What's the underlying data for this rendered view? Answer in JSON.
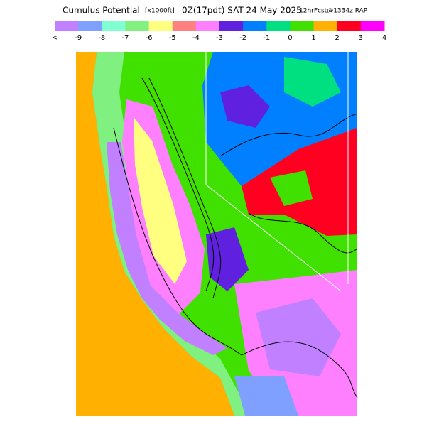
{
  "header": {
    "title": "Cumulus Potential",
    "units": "[x1000ft]",
    "valid": "0Z(17pdt) SAT 24 May 2025",
    "forecast": "12hrFcst@1334z RAP"
  },
  "legend": {
    "labels": [
      "<",
      "-9",
      "-8",
      "-7",
      "-6",
      "-5",
      "-4",
      "-3",
      "-2",
      "-1",
      "0",
      "1",
      "2",
      "3",
      "4"
    ],
    "colors": [
      "#c080ff",
      "#80a0ff",
      "#80ffd0",
      "#80f080",
      "#ffff80",
      "#ff8080",
      "#ff80ff",
      "#6020e0",
      "#0080ff",
      "#00e080",
      "#40e000",
      "#ffb000",
      "#ff0020",
      "#ff00ff"
    ]
  }
}
